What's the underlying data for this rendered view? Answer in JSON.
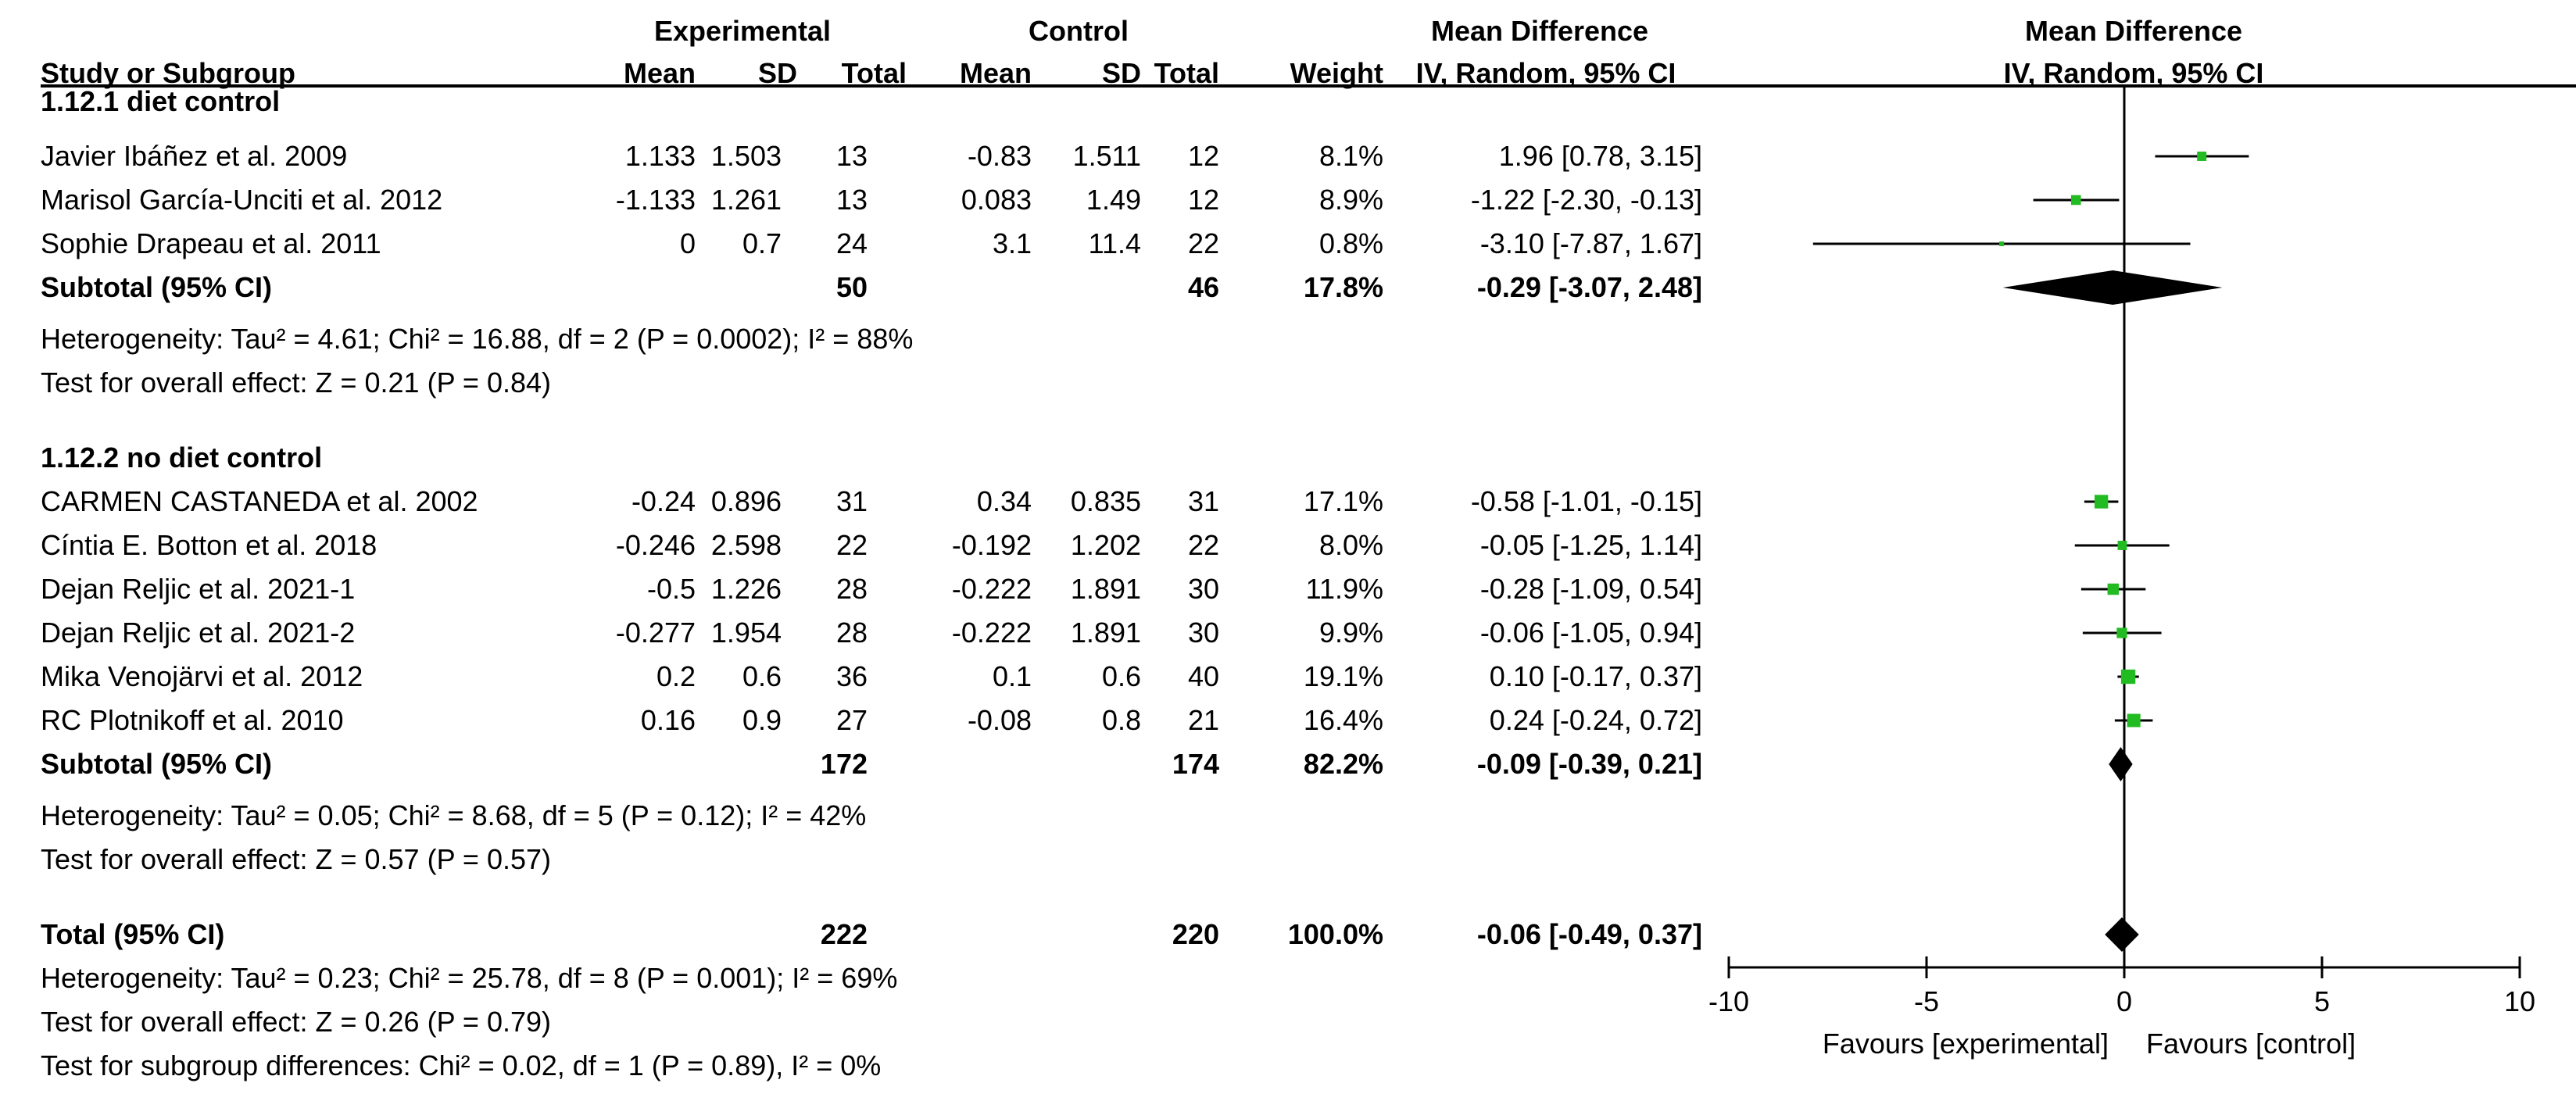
{
  "header": {
    "experimental": "Experimental",
    "control": "Control",
    "mean_difference": "Mean Difference",
    "study_col": "Study or Subgroup",
    "exp_mean": "Mean",
    "exp_sd": "SD",
    "exp_total": "Total",
    "ctl_mean": "Mean",
    "ctl_sd": "SD",
    "ctl_total": "Total",
    "weight": "Weight",
    "method": "IV, Random, 95% CI",
    "plot_title": "Mean Difference",
    "plot_method": "IV, Random, 95% CI"
  },
  "groups": [
    {
      "title": "1.12.1 diet control",
      "studies": [
        {
          "name": "Javier Ibáñez et al. 2009",
          "e_mean": "1.133",
          "e_sd": "1.503",
          "e_total": "13",
          "c_mean": "-0.83",
          "c_sd": "1.511",
          "c_total": "12",
          "weight": "8.1%",
          "ci": "1.96 [0.78, 3.15]"
        },
        {
          "name": "Marisol García-Unciti et al. 2012",
          "e_mean": "-1.133",
          "e_sd": "1.261",
          "e_total": "13",
          "c_mean": "0.083",
          "c_sd": "1.49",
          "c_total": "12",
          "weight": "8.9%",
          "ci": "-1.22 [-2.30, -0.13]"
        },
        {
          "name": "Sophie Drapeau et al. 2011",
          "e_mean": "0",
          "e_sd": "0.7",
          "e_total": "24",
          "c_mean": "3.1",
          "c_sd": "11.4",
          "c_total": "22",
          "weight": "0.8%",
          "ci": "-3.10 [-7.87, 1.67]"
        }
      ],
      "subtotal": {
        "label": "Subtotal (95% CI)",
        "e_total": "50",
        "c_total": "46",
        "weight": "17.8%",
        "ci": "-0.29 [-3.07, 2.48]"
      },
      "heterogeneity": "Heterogeneity: Tau² = 4.61; Chi² = 16.88, df = 2 (P = 0.0002); I² = 88%",
      "overall": "Test for overall effect: Z = 0.21 (P = 0.84)"
    },
    {
      "title": "1.12.2 no diet control",
      "studies": [
        {
          "name": "CARMEN CASTANEDA et al. 2002",
          "e_mean": "-0.24",
          "e_sd": "0.896",
          "e_total": "31",
          "c_mean": "0.34",
          "c_sd": "0.835",
          "c_total": "31",
          "weight": "17.1%",
          "ci": "-0.58 [-1.01, -0.15]"
        },
        {
          "name": "Cíntia E. Botton et al. 2018",
          "e_mean": "-0.246",
          "e_sd": "2.598",
          "e_total": "22",
          "c_mean": "-0.192",
          "c_sd": "1.202",
          "c_total": "22",
          "weight": "8.0%",
          "ci": "-0.05 [-1.25, 1.14]"
        },
        {
          "name": "Dejan Reljic et al. 2021-1",
          "e_mean": "-0.5",
          "e_sd": "1.226",
          "e_total": "28",
          "c_mean": "-0.222",
          "c_sd": "1.891",
          "c_total": "30",
          "weight": "11.9%",
          "ci": "-0.28 [-1.09, 0.54]"
        },
        {
          "name": "Dejan Reljic et al. 2021-2",
          "e_mean": "-0.277",
          "e_sd": "1.954",
          "e_total": "28",
          "c_mean": "-0.222",
          "c_sd": "1.891",
          "c_total": "30",
          "weight": "9.9%",
          "ci": "-0.06 [-1.05, 0.94]"
        },
        {
          "name": "Mika Venojärvi et al. 2012",
          "e_mean": "0.2",
          "e_sd": "0.6",
          "e_total": "36",
          "c_mean": "0.1",
          "c_sd": "0.6",
          "c_total": "40",
          "weight": "19.1%",
          "ci": "0.10 [-0.17, 0.37]"
        },
        {
          "name": "RC Plotnikoff et al. 2010",
          "e_mean": "0.16",
          "e_sd": "0.9",
          "e_total": "27",
          "c_mean": "-0.08",
          "c_sd": "0.8",
          "c_total": "21",
          "weight": "16.4%",
          "ci": "0.24 [-0.24, 0.72]"
        }
      ],
      "subtotal": {
        "label": "Subtotal (95% CI)",
        "e_total": "172",
        "c_total": "174",
        "weight": "82.2%",
        "ci": "-0.09 [-0.39, 0.21]"
      },
      "heterogeneity": "Heterogeneity: Tau² = 0.05; Chi² = 8.68, df = 5 (P = 0.12); I² = 42%",
      "overall": "Test for overall effect: Z = 0.57 (P = 0.57)"
    }
  ],
  "total": {
    "label": "Total (95% CI)",
    "e_total": "222",
    "c_total": "220",
    "weight": "100.0%",
    "ci": "-0.06 [-0.49, 0.37]",
    "heterogeneity": "Heterogeneity: Tau² = 0.23; Chi² = 25.78, df = 8 (P = 0.001); I² = 69%",
    "overall": "Test for overall effect: Z = 0.26 (P = 0.79)",
    "subgroup": "Test for subgroup differences: Chi² = 0.02, df = 1 (P = 0.89), I² = 0%"
  },
  "colors": {
    "study_marker": "#22bb22",
    "diamond": "#000000",
    "line": "#000000"
  },
  "chart_data": {
    "type": "forest",
    "xlim": [
      -10,
      10
    ],
    "ticks": [
      -10,
      -5,
      0,
      5,
      10
    ],
    "tick_labels": [
      "-10",
      "-5",
      "0",
      "5",
      "10"
    ],
    "xlabel_left": "Favours [experimental]",
    "xlabel_right": "Favours [control]",
    "studies": [
      {
        "group": 0,
        "est": 1.96,
        "lo": 0.78,
        "hi": 3.15,
        "weight": 8.1
      },
      {
        "group": 0,
        "est": -1.22,
        "lo": -2.3,
        "hi": -0.13,
        "weight": 8.9
      },
      {
        "group": 0,
        "est": -3.1,
        "lo": -7.87,
        "hi": 1.67,
        "weight": 0.8
      },
      {
        "group": 1,
        "est": -0.58,
        "lo": -1.01,
        "hi": -0.15,
        "weight": 17.1
      },
      {
        "group": 1,
        "est": -0.05,
        "lo": -1.25,
        "hi": 1.14,
        "weight": 8.0
      },
      {
        "group": 1,
        "est": -0.28,
        "lo": -1.09,
        "hi": 0.54,
        "weight": 11.9
      },
      {
        "group": 1,
        "est": -0.06,
        "lo": -1.05,
        "hi": 0.94,
        "weight": 9.9
      },
      {
        "group": 1,
        "est": 0.1,
        "lo": -0.17,
        "hi": 0.37,
        "weight": 19.1
      },
      {
        "group": 1,
        "est": 0.24,
        "lo": -0.24,
        "hi": 0.72,
        "weight": 16.4
      }
    ],
    "subtotals": [
      {
        "est": -0.29,
        "lo": -3.07,
        "hi": 2.48
      },
      {
        "est": -0.09,
        "lo": -0.39,
        "hi": 0.21
      }
    ],
    "overall": {
      "est": -0.06,
      "lo": -0.49,
      "hi": 0.37
    }
  }
}
